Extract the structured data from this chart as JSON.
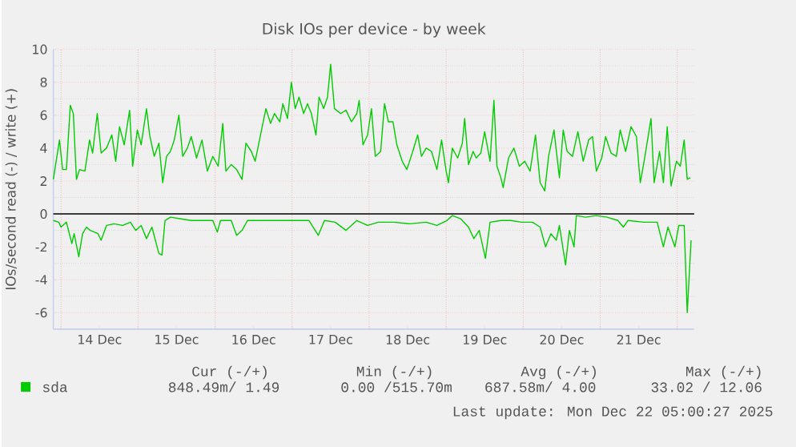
{
  "chart_data": {
    "type": "line",
    "title": "Disk IOs per device - by week",
    "ylabel": "IOs/second read (-) / write (+)",
    "xlim": [
      "2025-12-13T21:36",
      "2025-12-22T05:17"
    ],
    "ylim": [
      -7,
      10
    ],
    "xticks": [
      {
        "value": "2025-12-14",
        "label": null
      },
      {
        "value": "2025-12-14T12:00",
        "label": "14 Dec"
      },
      {
        "value": "2025-12-15",
        "label": null
      },
      {
        "value": "2025-12-15T12:00",
        "label": "15 Dec"
      },
      {
        "value": "2025-12-16",
        "label": null
      },
      {
        "value": "2025-12-16T12:00",
        "label": "16 Dec"
      },
      {
        "value": "2025-12-17",
        "label": null
      },
      {
        "value": "2025-12-17T12:00",
        "label": "17 Dec"
      },
      {
        "value": "2025-12-18",
        "label": null
      },
      {
        "value": "2025-12-18T12:00",
        "label": "18 Dec"
      },
      {
        "value": "2025-12-19",
        "label": null
      },
      {
        "value": "2025-12-19T12:00",
        "label": "19 Dec"
      },
      {
        "value": "2025-12-20",
        "label": null
      },
      {
        "value": "2025-12-20T12:00",
        "label": "20 Dec"
      },
      {
        "value": "2025-12-21",
        "label": null
      },
      {
        "value": "2025-12-21T12:00",
        "label": "21 Dec"
      },
      {
        "value": "2025-12-22",
        "label": null
      }
    ],
    "yticks": [
      -6,
      -4,
      -2,
      0,
      2,
      4,
      6,
      8,
      10
    ],
    "grid": true,
    "legend": "bottom",
    "ref_lines": [
      {
        "axis": "y",
        "value": 0,
        "color": "#000000"
      }
    ],
    "series": [
      {
        "name": "sda",
        "color": "#00cc00",
        "x": [
          "2025-12-13T21:36",
          "2025-12-13T23:31",
          "2025-12-14T00:29",
          "2025-12-14T01:41",
          "2025-12-14T02:53",
          "2025-12-14T03:50",
          "2025-12-14T04:48",
          "2025-12-14T05:46",
          "2025-12-14T07:26",
          "2025-12-14T08:53",
          "2025-12-14T09:50",
          "2025-12-14T11:17",
          "2025-12-14T12:29",
          "2025-12-14T14:10",
          "2025-12-14T15:50",
          "2025-12-14T17:02",
          "2025-12-14T18:14",
          "2025-12-14T19:41",
          "2025-12-14T21:22",
          "2025-12-14T22:19",
          "2025-12-14T23:46",
          "2025-12-15T00:58",
          "2025-12-15T02:38",
          "2025-12-15T03:36",
          "2025-12-15T05:02",
          "2025-12-15T06:29",
          "2025-12-15T07:41",
          "2025-12-15T08:53",
          "2025-12-15T10:05",
          "2025-12-15T11:17",
          "2025-12-15T12:43",
          "2025-12-15T13:55",
          "2025-12-15T15:22",
          "2025-12-15T16:34",
          "2025-12-15T18:14",
          "2025-12-15T19:55",
          "2025-12-15T21:36",
          "2025-12-15T23:17",
          "2025-12-16T00:58",
          "2025-12-16T02:24",
          "2025-12-16T03:22",
          "2025-12-16T05:02",
          "2025-12-16T06:43",
          "2025-12-16T08:24",
          "2025-12-16T09:36",
          "2025-12-16T11:17",
          "2025-12-16T12:29",
          "2025-12-16T14:10",
          "2025-12-16T15:50",
          "2025-12-16T17:17",
          "2025-12-16T18:29",
          "2025-12-16T20:10",
          "2025-12-16T21:07",
          "2025-12-16T22:34",
          "2025-12-16T23:46",
          "2025-12-17T00:58",
          "2025-12-17T02:10",
          "2025-12-17T03:36",
          "2025-12-17T04:48",
          "2025-12-17T06:00",
          "2025-12-17T07:26",
          "2025-12-17T08:24",
          "2025-12-17T09:50",
          "2025-12-17T11:02",
          "2025-12-17T12:00",
          "2025-12-17T13:12",
          "2025-12-17T15:07",
          "2025-12-17T16:48",
          "2025-12-17T18:29",
          "2025-12-17T20:10",
          "2025-12-17T20:53",
          "2025-12-17T22:05",
          "2025-12-17T23:31",
          "2025-12-18T00:43",
          "2025-12-18T01:55",
          "2025-12-18T03:36",
          "2025-12-18T04:48",
          "2025-12-18T06:00",
          "2025-12-18T07:26",
          "2025-12-18T08:38",
          "2025-12-18T10:19",
          "2025-12-18T11:46",
          "2025-12-18T13:26",
          "2025-12-18T15:07",
          "2025-12-18T16:19",
          "2025-12-18T17:46",
          "2025-12-18T19:26",
          "2025-12-18T21:07",
          "2025-12-18T22:34",
          "2025-12-19T00:00",
          "2025-12-19T00:43",
          "2025-12-19T01:55",
          "2025-12-19T03:36",
          "2025-12-19T05:02",
          "2025-12-19T05:46",
          "2025-12-19T06:58",
          "2025-12-19T08:24",
          "2025-12-19T09:22",
          "2025-12-19T10:48",
          "2025-12-19T12:00",
          "2025-12-19T13:41",
          "2025-12-19T14:53",
          "2025-12-19T15:50",
          "2025-12-19T17:02",
          "2025-12-19T17:46",
          "2025-12-19T19:26",
          "2025-12-19T21:07",
          "2025-12-19T22:48",
          "2025-12-20T00:29",
          "2025-12-20T02:10",
          "2025-12-20T03:50",
          "2025-12-20T05:17",
          "2025-12-20T06:43",
          "2025-12-20T07:55",
          "2025-12-20T09:36",
          "2025-12-20T11:17",
          "2025-12-20T12:29",
          "2025-12-20T13:41",
          "2025-12-20T15:22",
          "2025-12-20T17:02",
          "2025-12-20T18:43",
          "2025-12-20T20:24",
          "2025-12-20T21:36",
          "2025-12-20T22:48",
          "2025-12-21T00:29",
          "2025-12-21T01:41",
          "2025-12-21T03:22",
          "2025-12-21T05:02",
          "2025-12-21T06:14",
          "2025-12-21T07:55",
          "2025-12-21T09:36",
          "2025-12-21T11:17",
          "2025-12-21T12:29",
          "2025-12-21T13:41",
          "2025-12-21T15:50",
          "2025-12-21T16:48",
          "2025-12-21T18:29",
          "2025-12-21T19:41",
          "2025-12-21T20:53",
          "2025-12-21T22:05",
          "2025-12-21T23:46",
          "2025-12-22T00:58",
          "2025-12-22T02:10",
          "2025-12-22T03:07",
          "2025-12-22T04:05"
        ],
        "values": [
          2.1,
          4.5,
          2.7,
          2.7,
          6.6,
          6.1,
          2.1,
          2.7,
          2.6,
          4.5,
          3.7,
          6.1,
          3.7,
          4.0,
          4.8,
          3.2,
          5.3,
          4.2,
          6.3,
          2.9,
          5.1,
          4.2,
          6.4,
          4.8,
          3.5,
          4.3,
          1.9,
          3.5,
          3.8,
          4.5,
          6.0,
          3.5,
          4.0,
          4.7,
          3.4,
          4.5,
          2.6,
          3.5,
          2.9,
          5.5,
          2.6,
          3.0,
          2.7,
          2.1,
          4.3,
          3.8,
          3.2,
          4.8,
          6.4,
          5.5,
          6.1,
          5.6,
          6.7,
          5.8,
          8.0,
          6.4,
          7.1,
          6.1,
          6.7,
          6.1,
          4.8,
          7.1,
          6.4,
          7.1,
          9.1,
          6.4,
          6.1,
          6.3,
          5.6,
          6.1,
          6.9,
          4.2,
          4.8,
          6.4,
          3.5,
          3.8,
          6.7,
          5.6,
          5.6,
          4.2,
          3.2,
          2.7,
          3.7,
          4.8,
          3.5,
          4.0,
          3.8,
          2.7,
          4.5,
          2.6,
          1.9,
          4.0,
          3.4,
          4.3,
          5.8,
          3.0,
          3.8,
          3.4,
          3.7,
          5.0,
          3.2,
          6.9,
          2.9,
          2.2,
          1.6,
          3.4,
          4.0,
          2.9,
          3.2,
          2.6,
          4.8,
          1.9,
          1.4,
          3.5,
          5.1,
          2.2,
          5.1,
          3.8,
          3.5,
          5.0,
          3.2,
          4.5,
          4.7,
          2.6,
          3.4,
          4.7,
          3.7,
          3.5,
          5.1,
          3.8,
          5.3,
          4.7,
          1.9,
          3.2,
          5.8,
          1.9,
          3.8,
          1.9,
          5.3,
          1.7,
          3.2,
          2.9,
          4.5,
          2.1,
          2.2
        ]
      },
      {
        "color": "#00cc00",
        "x": [
          "2025-12-13T21:36",
          "2025-12-13T23:17",
          "2025-12-14T00:00",
          "2025-12-14T01:41",
          "2025-12-14T03:22",
          "2025-12-14T04:05",
          "2025-12-14T05:31",
          "2025-12-14T06:43",
          "2025-12-14T07:55",
          "2025-12-14T09:07",
          "2025-12-14T11:31",
          "2025-12-14T12:29",
          "2025-12-14T14:10",
          "2025-12-14T16:34",
          "2025-12-14T19:12",
          "2025-12-14T21:36",
          "2025-12-14T23:17",
          "2025-12-15T00:58",
          "2025-12-15T02:38",
          "2025-12-15T04:19",
          "2025-12-15T06:29",
          "2025-12-15T07:26",
          "2025-12-15T08:24",
          "2025-12-15T10:05",
          "2025-12-15T13:26",
          "2025-12-15T16:34",
          "2025-12-15T19:55",
          "2025-12-15T23:17",
          "2025-12-16T00:43",
          "2025-12-16T01:41",
          "2025-12-16T05:02",
          "2025-12-16T06:43",
          "2025-12-16T08:24",
          "2025-12-16T10:05",
          "2025-12-16T14:10",
          "2025-12-16T17:31",
          "2025-12-16T22:34",
          "2025-12-17T01:55",
          "2025-12-17T05:17",
          "2025-12-17T08:10",
          "2025-12-17T10:05",
          "2025-12-17T13:26",
          "2025-12-17T16:48",
          "2025-12-17T20:10",
          "2025-12-17T23:31",
          "2025-12-18T02:53",
          "2025-12-18T07:41",
          "2025-12-18T12:43",
          "2025-12-18T17:46",
          "2025-12-18T21:07",
          "2025-12-19T00:14",
          "2025-12-19T01:55",
          "2025-12-19T04:34",
          "2025-12-19T06:58",
          "2025-12-19T08:38",
          "2025-12-19T10:19",
          "2025-12-19T12:14",
          "2025-12-19T13:41",
          "2025-12-19T17:02",
          "2025-12-19T20:10",
          "2025-12-19T23:31",
          "2025-12-20T02:53",
          "2025-12-20T05:17",
          "2025-12-20T06:58",
          "2025-12-20T08:38",
          "2025-12-20T10:19",
          "2025-12-20T11:17",
          "2025-12-20T13:12",
          "2025-12-20T14:24",
          "2025-12-20T15:50",
          "2025-12-20T16:34",
          "2025-12-20T19:26",
          "2025-12-20T22:48",
          "2025-12-21T02:10",
          "2025-12-21T05:31",
          "2025-12-21T07:12",
          "2025-12-21T08:38",
          "2025-12-21T13:41",
          "2025-12-21T17:46",
          "2025-12-21T19:41",
          "2025-12-21T21:07",
          "2025-12-21T23:17",
          "2025-12-22T00:29",
          "2025-12-22T02:10",
          "2025-12-22T03:07",
          "2025-12-22T04:19"
        ],
        "values": [
          -0.4,
          -0.5,
          -0.8,
          -0.5,
          -1.8,
          -1.2,
          -2.6,
          -1.2,
          -0.8,
          -1.0,
          -1.2,
          -1.6,
          -0.7,
          -0.6,
          -0.7,
          -0.5,
          -1.0,
          -0.7,
          -1.5,
          -0.8,
          -2.4,
          -2.5,
          -0.4,
          -0.2,
          -0.3,
          -0.4,
          -0.4,
          -0.4,
          -1.1,
          -0.4,
          -0.4,
          -1.3,
          -1.0,
          -0.4,
          -0.4,
          -0.4,
          -0.4,
          -0.4,
          -0.4,
          -1.3,
          -0.4,
          -0.5,
          -1.0,
          -0.4,
          -0.7,
          -0.5,
          -0.5,
          -0.6,
          -0.5,
          -0.7,
          -0.4,
          -0.1,
          -0.3,
          -0.8,
          -1.5,
          -1.0,
          -2.7,
          -0.5,
          -0.4,
          -0.4,
          -0.5,
          -0.5,
          -0.8,
          -2.0,
          -1.2,
          -1.6,
          -0.7,
          -3.1,
          -1.0,
          -2.0,
          -0.1,
          -0.2,
          -0.1,
          -0.2,
          -0.4,
          -0.8,
          -0.4,
          -0.5,
          -0.5,
          -2.0,
          -0.8,
          -2.0,
          -0.7,
          -0.7,
          -6.0,
          -1.6
        ]
      }
    ],
    "annotations": [
      "Cur (-/+)",
      "Min (-/+)",
      "Avg (-/+)",
      "Max (-/+)",
      "848.49m/  1.49",
      "0.00 /515.70m",
      "687.58m/  4.00",
      "33.02 / 12.06",
      "Last update: Mon Dec 22 05:00:27 2025"
    ]
  }
}
